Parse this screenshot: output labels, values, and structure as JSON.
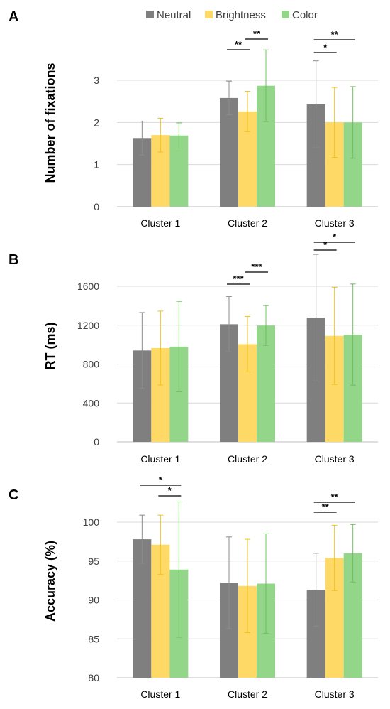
{
  "legend": {
    "placement": "top-center",
    "entries": [
      {
        "label": "Neutral",
        "color": "#7f7f7f"
      },
      {
        "label": "Brightness",
        "color": "#ffd966"
      },
      {
        "label": "Color",
        "color": "#93d68a"
      }
    ]
  },
  "colors": {
    "neutral": "#7f7f7f",
    "brightness": "#ffd966",
    "color": "#93d68a",
    "neutral_err": "#8c8c8c",
    "brightness_err": "#f0c21a",
    "color_err": "#6fbf5f",
    "grid": "#d9d9d9",
    "axis": "#bfbfbf",
    "text": "#404040"
  },
  "chart_data": [
    {
      "type": "bar",
      "panel_label": "A",
      "title": "",
      "xlabel": "",
      "ylabel": "Number of fixations",
      "ylim": [
        0,
        4
      ],
      "yticks": [
        0,
        1,
        2,
        3
      ],
      "grid": true,
      "categories": [
        "Cluster 1",
        "Cluster 2",
        "Cluster 3"
      ],
      "series": [
        {
          "name": "Neutral",
          "values": [
            1.63,
            2.58,
            2.43
          ],
          "errors": [
            0.4,
            0.4,
            1.03
          ]
        },
        {
          "name": "Brightness",
          "values": [
            1.7,
            2.26,
            2.0
          ],
          "errors": [
            0.4,
            0.48,
            0.83
          ]
        },
        {
          "name": "Color",
          "values": [
            1.69,
            2.87,
            2.0
          ],
          "errors": [
            0.3,
            0.85,
            0.85
          ]
        }
      ],
      "significance": [
        {
          "category": 1,
          "from": 0,
          "to": 1,
          "label": "**",
          "level": 0
        },
        {
          "category": 1,
          "from": 1,
          "to": 2,
          "label": "**",
          "level": 1
        },
        {
          "category": 2,
          "from": 0,
          "to": 1,
          "label": "*",
          "level": 0
        },
        {
          "category": 2,
          "from": 0,
          "to": 2,
          "label": "**",
          "level": 1
        }
      ]
    },
    {
      "type": "bar",
      "panel_label": "B",
      "title": "",
      "xlabel": "",
      "ylabel": "RT (ms)",
      "ylim": [
        0,
        1800
      ],
      "yticks": [
        0,
        400,
        800,
        1200,
        1600
      ],
      "grid": true,
      "categories": [
        "Cluster 1",
        "Cluster 2",
        "Cluster 3"
      ],
      "series": [
        {
          "name": "Neutral",
          "values": [
            940,
            1210,
            1278
          ],
          "errors": [
            390,
            285,
            650
          ]
        },
        {
          "name": "Brightness",
          "values": [
            965,
            1005,
            1090
          ],
          "errors": [
            380,
            285,
            500
          ]
        },
        {
          "name": "Color",
          "values": [
            980,
            1197,
            1103
          ],
          "errors": [
            465,
            205,
            520
          ]
        }
      ],
      "significance": [
        {
          "category": 1,
          "from": 0,
          "to": 1,
          "label": "***",
          "level": 0
        },
        {
          "category": 1,
          "from": 1,
          "to": 2,
          "label": "***",
          "level": 1
        },
        {
          "category": 2,
          "from": 0,
          "to": 1,
          "label": "*",
          "level": 0
        },
        {
          "category": 2,
          "from": 0,
          "to": 2,
          "label": "*",
          "level": 1
        }
      ]
    },
    {
      "type": "bar",
      "panel_label": "C",
      "title": "",
      "xlabel": "",
      "ylabel": "Accuracy (%)",
      "ylim": [
        80,
        103
      ],
      "yticks": [
        80,
        85,
        90,
        95,
        100
      ],
      "grid": true,
      "categories": [
        "Cluster 1",
        "Cluster 2",
        "Cluster 3"
      ],
      "series": [
        {
          "name": "Neutral",
          "values": [
            97.8,
            92.2,
            91.3
          ],
          "errors": [
            3.1,
            5.9,
            4.7
          ]
        },
        {
          "name": "Brightness",
          "values": [
            97.1,
            91.8,
            95.4
          ],
          "errors": [
            3.8,
            6.0,
            4.2
          ]
        },
        {
          "name": "Color",
          "values": [
            93.9,
            92.1,
            96.0
          ],
          "errors": [
            8.7,
            6.4,
            3.7
          ]
        }
      ],
      "significance": [
        {
          "category": 0,
          "from": 1,
          "to": 2,
          "label": "*",
          "level": 0
        },
        {
          "category": 0,
          "from": 0,
          "to": 2,
          "label": "*",
          "level": 1
        },
        {
          "category": 2,
          "from": 0,
          "to": 1,
          "label": "**",
          "level": 0
        },
        {
          "category": 2,
          "from": 0,
          "to": 2,
          "label": "**",
          "level": 1
        }
      ]
    }
  ]
}
